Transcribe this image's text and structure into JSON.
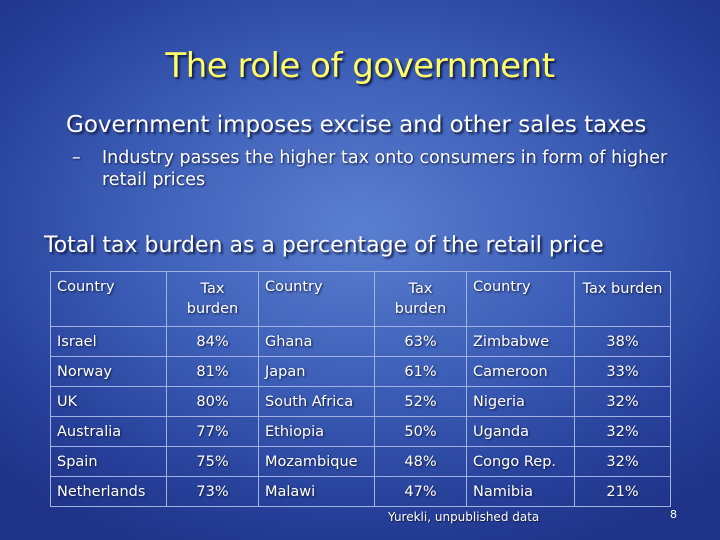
{
  "slide": {
    "title": "The role of government",
    "bullet_main": "Government imposes excise and other sales taxes",
    "bullet_sub_dash": "–",
    "bullet_sub": "Industry passes the higher tax onto consumers in form of higher retail prices",
    "subtitle": "Total tax burden as a percentage of the retail price",
    "source": "Yurekli, unpublished data",
    "page_number": "8"
  },
  "table": {
    "headers": [
      {
        "country": "Country",
        "tax": "Tax burden"
      },
      {
        "country": "Country",
        "tax": "Tax burden"
      },
      {
        "country": "Country",
        "tax": "Tax burden"
      }
    ],
    "rows": [
      [
        {
          "country": "Israel",
          "tax": "84%"
        },
        {
          "country": "Ghana",
          "tax": "63%"
        },
        {
          "country": "Zimbabwe",
          "tax": "38%"
        }
      ],
      [
        {
          "country": "Norway",
          "tax": "81%"
        },
        {
          "country": "Japan",
          "tax": "61%"
        },
        {
          "country": "Cameroon",
          "tax": "33%"
        }
      ],
      [
        {
          "country": "UK",
          "tax": "80%"
        },
        {
          "country": "South Africa",
          "tax": "52%"
        },
        {
          "country": "Nigeria",
          "tax": "32%"
        }
      ],
      [
        {
          "country": "Australia",
          "tax": "77%"
        },
        {
          "country": "Ethiopia",
          "tax": "50%"
        },
        {
          "country": "Uganda",
          "tax": "32%"
        }
      ],
      [
        {
          "country": "Spain",
          "tax": "75%"
        },
        {
          "country": "Mozambique",
          "tax": "48%"
        },
        {
          "country": "Congo Rep.",
          "tax": "32%"
        }
      ],
      [
        {
          "country": "Netherlands",
          "tax": "73%"
        },
        {
          "country": "Malawi",
          "tax": "47%"
        },
        {
          "country": "Namibia",
          "tax": "21%"
        }
      ]
    ]
  },
  "colors": {
    "title": "#ffff66",
    "text": "#ffffff",
    "background_center": "#5b7fd0",
    "background_edge": "#1f3488"
  }
}
